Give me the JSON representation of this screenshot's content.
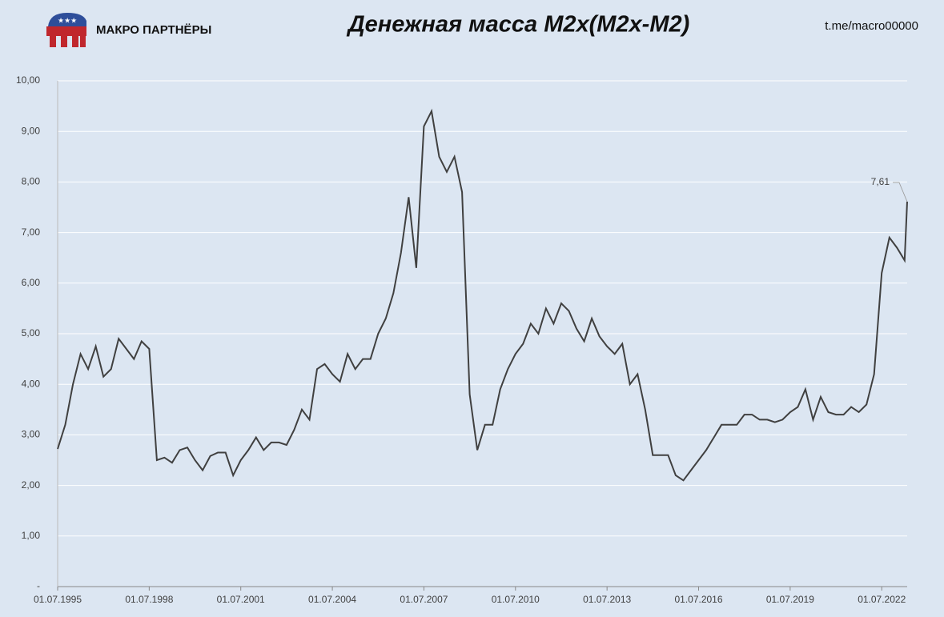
{
  "brand": "МАКРО ПАРТНЁРЫ",
  "channel": "t.me/macro00000",
  "chart_data": {
    "type": "line",
    "title": "Денежная масса M2x(M2x-M2)",
    "x": [
      "01.07.1995",
      "01.10.1995",
      "01.01.1996",
      "01.04.1996",
      "01.07.1996",
      "01.10.1996",
      "01.01.1997",
      "01.04.1997",
      "01.07.1997",
      "01.10.1997",
      "01.01.1998",
      "01.04.1998",
      "01.07.1998",
      "01.10.1998",
      "01.01.1999",
      "01.04.1999",
      "01.07.1999",
      "01.10.1999",
      "01.01.2000",
      "01.04.2000",
      "01.07.2000",
      "01.10.2000",
      "01.01.2001",
      "01.04.2001",
      "01.07.2001",
      "01.10.2001",
      "01.01.2002",
      "01.04.2002",
      "01.07.2002",
      "01.10.2002",
      "01.01.2003",
      "01.04.2003",
      "01.07.2003",
      "01.10.2003",
      "01.01.2004",
      "01.04.2004",
      "01.07.2004",
      "01.10.2004",
      "01.01.2005",
      "01.04.2005",
      "01.07.2005",
      "01.10.2005",
      "01.01.2006",
      "01.04.2006",
      "01.07.2006",
      "01.10.2006",
      "01.01.2007",
      "01.04.2007",
      "01.07.2007",
      "01.10.2007",
      "01.01.2008",
      "01.04.2008",
      "01.07.2008",
      "01.10.2008",
      "01.01.2009",
      "01.04.2009",
      "01.07.2009",
      "01.10.2009",
      "01.01.2010",
      "01.04.2010",
      "01.07.2010",
      "01.10.2010",
      "01.01.2011",
      "01.04.2011",
      "01.07.2011",
      "01.10.2011",
      "01.01.2012",
      "01.04.2012",
      "01.07.2012",
      "01.10.2012",
      "01.01.2013",
      "01.04.2013",
      "01.07.2013",
      "01.10.2013",
      "01.01.2014",
      "01.04.2014",
      "01.07.2014",
      "01.10.2014",
      "01.01.2015",
      "01.04.2015",
      "01.07.2015",
      "01.10.2015",
      "01.01.2016",
      "01.04.2016",
      "01.07.2016",
      "01.10.2016",
      "01.01.2017",
      "01.04.2017",
      "01.07.2017",
      "01.10.2017",
      "01.01.2018",
      "01.04.2018",
      "01.07.2018",
      "01.10.2018",
      "01.01.2019",
      "01.04.2019",
      "01.07.2019",
      "01.10.2019",
      "01.01.2020",
      "01.04.2020",
      "01.07.2020",
      "01.10.2020",
      "01.01.2021",
      "01.04.2021",
      "01.07.2021",
      "01.10.2021",
      "01.01.2022",
      "01.04.2022",
      "01.07.2022",
      "01.10.2022",
      "01.01.2023",
      "01.04.2023",
      "01.05.2023"
    ],
    "series": [
      {
        "name": "M2x-M2",
        "color": "#404040",
        "values": [
          2.72,
          3.2,
          4.0,
          4.6,
          4.3,
          4.75,
          4.15,
          4.3,
          4.9,
          4.7,
          4.5,
          4.85,
          4.7,
          2.5,
          2.55,
          2.45,
          2.7,
          2.75,
          2.5,
          2.3,
          2.58,
          2.65,
          2.65,
          2.2,
          2.5,
          2.7,
          2.95,
          2.7,
          2.85,
          2.85,
          2.8,
          3.1,
          3.5,
          3.3,
          4.3,
          4.4,
          4.2,
          4.05,
          4.6,
          4.3,
          4.5,
          4.5,
          5.0,
          5.3,
          5.8,
          6.6,
          7.7,
          6.3,
          9.1,
          9.4,
          8.5,
          8.2,
          8.5,
          7.8,
          3.8,
          2.7,
          3.2,
          3.2,
          3.9,
          4.3,
          4.6,
          4.8,
          5.2,
          5.0,
          5.5,
          5.2,
          5.6,
          5.45,
          5.1,
          4.85,
          5.3,
          4.95,
          4.75,
          4.6,
          4.8,
          4.0,
          4.2,
          3.5,
          2.6,
          2.6,
          2.6,
          2.2,
          2.1,
          2.3,
          2.5,
          2.7,
          2.95,
          3.2,
          3.2,
          3.2,
          3.4,
          3.4,
          3.3,
          3.3,
          3.25,
          3.3,
          3.45,
          3.55,
          3.9,
          3.3,
          3.75,
          3.45,
          3.4,
          3.4,
          3.55,
          3.45,
          3.6,
          4.2,
          6.2,
          6.9,
          6.7,
          6.45,
          7.61
        ],
        "value_labels": [
          null,
          null,
          null,
          null,
          null,
          null,
          null,
          null,
          null,
          null,
          null,
          null,
          null,
          null,
          null,
          null,
          null,
          null,
          null,
          null,
          null,
          null,
          null,
          null,
          null,
          null,
          null,
          null,
          null,
          null,
          null,
          null,
          null,
          null,
          null,
          null,
          null,
          null,
          null,
          null,
          null,
          null,
          null,
          null,
          null,
          null,
          null,
          null,
          null,
          null,
          null,
          null,
          null,
          null,
          null,
          null,
          null,
          null,
          null,
          null,
          null,
          null,
          null,
          null,
          null,
          null,
          null,
          null,
          null,
          null,
          null,
          null,
          null,
          null,
          null,
          null,
          null,
          null,
          null,
          null,
          null,
          null,
          null,
          null,
          null,
          null,
          null,
          null,
          null,
          null,
          null,
          null,
          null,
          null,
          null,
          null,
          null,
          null,
          null,
          null,
          null,
          null,
          null,
          null,
          null,
          null,
          null,
          null,
          null,
          null,
          null,
          null,
          "7,61"
        ]
      }
    ],
    "xlim": [
      "01.07.1995",
      "01.05.2023"
    ],
    "xticks": [
      "01.07.1995",
      "01.07.1998",
      "01.07.2001",
      "01.07.2004",
      "01.07.2007",
      "01.07.2010",
      "01.07.2013",
      "01.07.2016",
      "01.07.2019",
      "01.07.2022"
    ],
    "ylim": [
      0,
      10
    ],
    "yticks": [
      {
        "value": 0,
        "label": "-"
      },
      {
        "value": 1,
        "label": "1,00"
      },
      {
        "value": 2,
        "label": "2,00"
      },
      {
        "value": 3,
        "label": "3,00"
      },
      {
        "value": 4,
        "label": "4,00"
      },
      {
        "value": 5,
        "label": "5,00"
      },
      {
        "value": 6,
        "label": "6,00"
      },
      {
        "value": 7,
        "label": "7,00"
      },
      {
        "value": 8,
        "label": "8,00"
      },
      {
        "value": 9,
        "label": "9,00"
      },
      {
        "value": 10,
        "label": "10,00"
      }
    ],
    "grid": true
  }
}
